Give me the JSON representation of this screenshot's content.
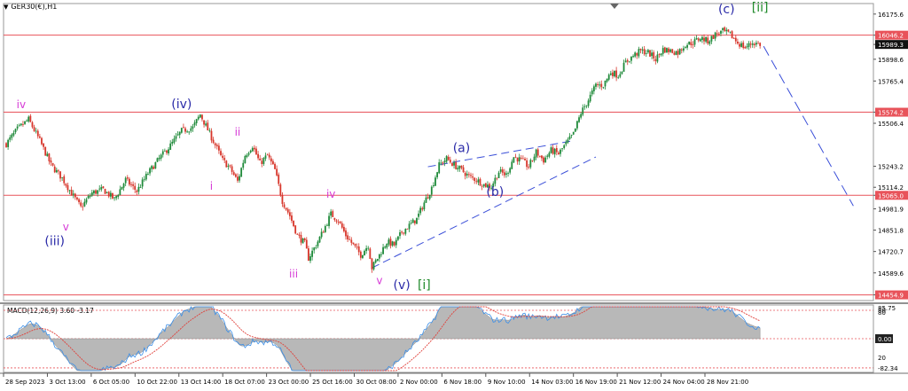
{
  "symbol_label": "GER30(€),H1",
  "macd_label": "MACD(12,26,9) 3.60 -3.17",
  "colors": {
    "hline": "#e8535a",
    "bull": "#1f8a3a",
    "bear": "#d7362b",
    "wave_blue": "#2a2aa8",
    "wave_magenta": "#d63ad6",
    "wave_green": "#1f8a2a",
    "channel": "#3b4fd8",
    "macd_hist": "#b8b8b8",
    "macd_line": "#3a8ee8",
    "signal_line": "#e0403a"
  },
  "chart_data": {
    "type": "candlestick",
    "price_ticks": [
      "16175.6",
      "16046.2",
      "15989.3",
      "15898.6",
      "15765.4",
      "15574.2",
      "15506.4",
      "15243.2",
      "15114.2",
      "15065.0",
      "14981.9",
      "14851.8",
      "14720.7",
      "14589.6",
      "14454.9"
    ],
    "price_range": [
      14420,
      16240
    ],
    "time_ticks": [
      "28 Sep 2023",
      "3 Oct 13:00",
      "6 Oct 05:00",
      "10 Oct 22:00",
      "13 Oct 14:00",
      "18 Oct 07:00",
      "23 Oct 00:00",
      "25 Oct 16:00",
      "30 Oct 08:00",
      "2 Nov 00:00",
      "6 Nov 18:00",
      "9 Nov 10:00",
      "14 Nov 03:00",
      "16 Nov 19:00",
      "21 Nov 12:00",
      "24 Nov 04:00",
      "28 Nov 21:00"
    ],
    "horizontal_levels": [
      16046.2,
      15574.2,
      15065.0,
      14454.9
    ],
    "current_price": 15989.3,
    "close_path": [
      [
        0,
        15380
      ],
      [
        3,
        15470
      ],
      [
        6,
        15530
      ],
      [
        9,
        15400
      ],
      [
        12,
        15250
      ],
      [
        15,
        15170
      ],
      [
        18,
        15060
      ],
      [
        20,
        14990
      ],
      [
        23,
        15080
      ],
      [
        26,
        15100
      ],
      [
        29,
        15040
      ],
      [
        32,
        15160
      ],
      [
        35,
        15090
      ],
      [
        38,
        15200
      ],
      [
        41,
        15290
      ],
      [
        44,
        15370
      ],
      [
        47,
        15460
      ],
      [
        50,
        15480
      ],
      [
        52,
        15560
      ],
      [
        55,
        15420
      ],
      [
        58,
        15280
      ],
      [
        60,
        15230
      ],
      [
        62,
        15150
      ],
      [
        64,
        15310
      ],
      [
        66,
        15370
      ],
      [
        68,
        15260
      ],
      [
        70,
        15310
      ],
      [
        72,
        15220
      ],
      [
        74,
        15030
      ],
      [
        76,
        14940
      ],
      [
        78,
        14820
      ],
      [
        80,
        14770
      ],
      [
        81,
        14680
      ],
      [
        83,
        14760
      ],
      [
        85,
        14850
      ],
      [
        87,
        14950
      ],
      [
        89,
        14910
      ],
      [
        91,
        14820
      ],
      [
        93,
        14760
      ],
      [
        95,
        14700
      ],
      [
        97,
        14760
      ],
      [
        98,
        14620
      ],
      [
        100,
        14700
      ],
      [
        102,
        14780
      ],
      [
        104,
        14760
      ],
      [
        106,
        14840
      ],
      [
        108,
        14880
      ],
      [
        110,
        14920
      ],
      [
        112,
        15020
      ],
      [
        114,
        15110
      ],
      [
        116,
        15250
      ],
      [
        118,
        15290
      ],
      [
        120,
        15250
      ],
      [
        122,
        15220
      ],
      [
        124,
        15180
      ],
      [
        126,
        15160
      ],
      [
        128,
        15130
      ],
      [
        130,
        15120
      ],
      [
        132,
        15210
      ],
      [
        134,
        15190
      ],
      [
        136,
        15300
      ],
      [
        138,
        15280
      ],
      [
        140,
        15240
      ],
      [
        142,
        15330
      ],
      [
        144,
        15280
      ],
      [
        146,
        15340
      ],
      [
        148,
        15320
      ],
      [
        150,
        15380
      ],
      [
        152,
        15440
      ],
      [
        154,
        15570
      ],
      [
        156,
        15650
      ],
      [
        158,
        15740
      ],
      [
        160,
        15740
      ],
      [
        162,
        15820
      ],
      [
        164,
        15800
      ],
      [
        166,
        15880
      ],
      [
        168,
        15920
      ],
      [
        170,
        15950
      ],
      [
        172,
        15940
      ],
      [
        174,
        15900
      ],
      [
        176,
        15960
      ],
      [
        178,
        15950
      ],
      [
        180,
        15940
      ],
      [
        182,
        15990
      ],
      [
        184,
        16000
      ],
      [
        186,
        16030
      ],
      [
        188,
        16010
      ],
      [
        190,
        16050
      ],
      [
        192,
        16070
      ],
      [
        194,
        16050
      ],
      [
        196,
        16000
      ],
      [
        198,
        15970
      ],
      [
        200,
        16000
      ],
      [
        202,
        15990
      ]
    ],
    "projection": [
      [
        202,
        15989.3
      ],
      [
        227,
        15000
      ]
    ],
    "channel_upper": [
      [
        113,
        15240
      ],
      [
        152,
        15400
      ]
    ],
    "channel_lower": [
      [
        98,
        14620
      ],
      [
        158,
        15300
      ]
    ],
    "macd": {
      "ticks": [
        "85.75",
        "80",
        "80",
        "0.00",
        "20",
        "-82.34"
      ],
      "range": [
        -95,
        95
      ],
      "levels": [
        80,
        0,
        -82.34
      ]
    }
  },
  "wave_labels": [
    {
      "text": "iv",
      "color": "wave_magenta",
      "bar": 4,
      "price": 15600
    },
    {
      "text": "v",
      "color": "wave_magenta",
      "bar": 16,
      "price": 14850
    },
    {
      "text": "(iii)",
      "color": "wave_blue",
      "bar": 13,
      "price": 14760
    },
    {
      "text": "(iv)",
      "color": "wave_blue",
      "bar": 47,
      "price": 15600
    },
    {
      "text": "ii",
      "color": "wave_magenta",
      "bar": 62,
      "price": 15430
    },
    {
      "text": "i",
      "color": "wave_magenta",
      "bar": 55,
      "price": 15100
    },
    {
      "text": "iv",
      "color": "wave_magenta",
      "bar": 87,
      "price": 15050
    },
    {
      "text": "iii",
      "color": "wave_magenta",
      "bar": 77,
      "price": 14560
    },
    {
      "text": "v",
      "color": "wave_magenta",
      "bar": 100,
      "price": 14520
    },
    {
      "text": "(v)",
      "color": "wave_blue",
      "bar": 106,
      "price": 14490
    },
    {
      "text": "[i]",
      "color": "wave_green",
      "bar": 112,
      "price": 14490
    },
    {
      "text": "(a)",
      "color": "wave_blue",
      "bar": 122,
      "price": 15330
    },
    {
      "text": "(b)",
      "color": "wave_blue",
      "bar": 131,
      "price": 15060
    },
    {
      "text": "(c)",
      "color": "wave_blue",
      "bar": 193,
      "price": 16180
    },
    {
      "text": "[ii]",
      "color": "wave_green",
      "bar": 202,
      "price": 16190
    }
  ]
}
